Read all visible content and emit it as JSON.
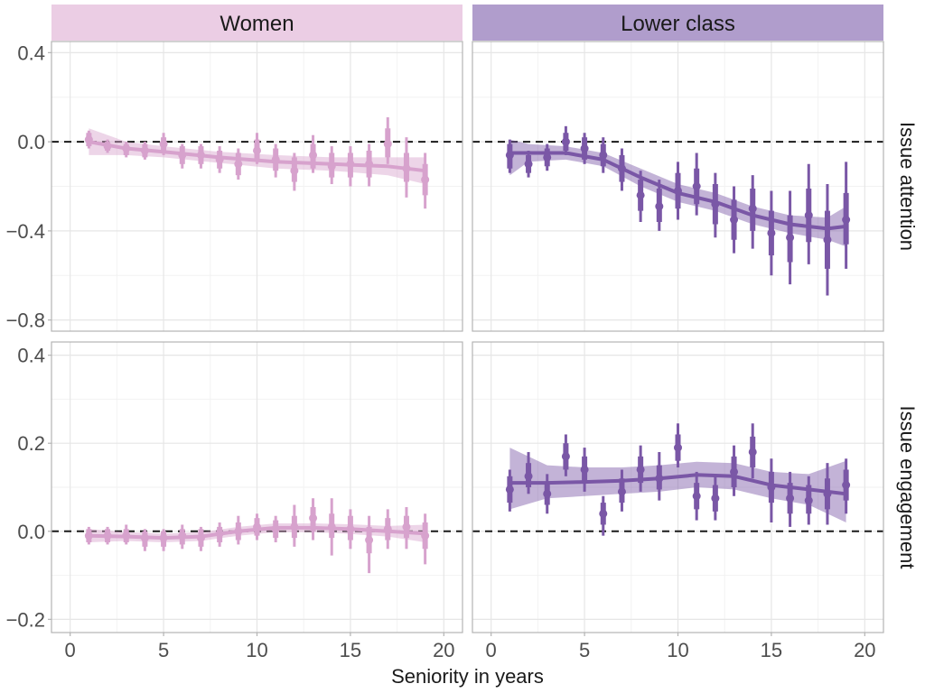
{
  "chart_data": {
    "type": "scatter",
    "xlabel": "Seniority in years",
    "xlim": [
      -1,
      21
    ],
    "x_ticks": [
      0,
      5,
      10,
      15,
      20
    ],
    "columns": [
      {
        "label": "Women",
        "color": "#d7a2cd",
        "strip_color": "#ebcde4"
      },
      {
        "label": "Lower class",
        "color": "#7a57a6",
        "strip_color": "#b09dcc"
      }
    ],
    "rows": [
      {
        "label": "Issue attention",
        "ylim": [
          -0.85,
          0.45
        ],
        "y_ticks": [
          0.4,
          0.0,
          -0.4,
          -0.8
        ],
        "y_tick_labels": [
          "0.4",
          "0.0",
          "−0.4",
          "−0.8"
        ]
      },
      {
        "label": "Issue engagement",
        "ylim": [
          -0.23,
          0.43
        ],
        "y_ticks": [
          0.4,
          0.2,
          0.0,
          -0.2
        ],
        "y_tick_labels": [
          "0.4",
          "0.2",
          "0.0",
          "−0.2"
        ]
      }
    ],
    "panels": [
      {
        "row": 0,
        "col": 0,
        "points": [
          {
            "x": 1,
            "y": 0.01,
            "lo": -0.02,
            "hi": 0.04,
            "lo2": -0.03,
            "hi2": 0.05
          },
          {
            "x": 2,
            "y": -0.02,
            "lo": -0.04,
            "hi": 0.0,
            "lo2": -0.05,
            "hi2": 0.01
          },
          {
            "x": 3,
            "y": -0.03,
            "lo": -0.06,
            "hi": -0.01,
            "lo2": -0.07,
            "hi2": 0.0
          },
          {
            "x": 4,
            "y": -0.04,
            "lo": -0.07,
            "hi": -0.01,
            "lo2": -0.08,
            "hi2": 0.0
          },
          {
            "x": 5,
            "y": -0.01,
            "lo": -0.05,
            "hi": 0.02,
            "lo2": -0.06,
            "hi2": 0.04
          },
          {
            "x": 6,
            "y": -0.06,
            "lo": -0.1,
            "hi": -0.02,
            "lo2": -0.12,
            "hi2": -0.01
          },
          {
            "x": 7,
            "y": -0.06,
            "lo": -0.1,
            "hi": -0.02,
            "lo2": -0.12,
            "hi2": -0.01
          },
          {
            "x": 8,
            "y": -0.08,
            "lo": -0.12,
            "hi": -0.04,
            "lo2": -0.14,
            "hi2": -0.02
          },
          {
            "x": 9,
            "y": -0.1,
            "lo": -0.15,
            "hi": -0.05,
            "lo2": -0.17,
            "hi2": -0.03
          },
          {
            "x": 10,
            "y": -0.04,
            "lo": -0.09,
            "hi": 0.01,
            "lo2": -0.1,
            "hi2": 0.04
          },
          {
            "x": 11,
            "y": -0.08,
            "lo": -0.13,
            "hi": -0.03,
            "lo2": -0.16,
            "hi2": -0.01
          },
          {
            "x": 12,
            "y": -0.13,
            "lo": -0.18,
            "hi": -0.07,
            "lo2": -0.22,
            "hi2": -0.05
          },
          {
            "x": 13,
            "y": -0.06,
            "lo": -0.12,
            "hi": -0.01,
            "lo2": -0.14,
            "hi2": 0.03
          },
          {
            "x": 14,
            "y": -0.11,
            "lo": -0.16,
            "hi": -0.05,
            "lo2": -0.19,
            "hi2": -0.02
          },
          {
            "x": 15,
            "y": -0.1,
            "lo": -0.16,
            "hi": -0.05,
            "lo2": -0.2,
            "hi2": -0.02
          },
          {
            "x": 16,
            "y": -0.1,
            "lo": -0.16,
            "hi": -0.04,
            "lo2": -0.2,
            "hi2": -0.01
          },
          {
            "x": 17,
            "y": -0.01,
            "lo": -0.07,
            "hi": 0.06,
            "lo2": -0.1,
            "hi2": 0.11
          },
          {
            "x": 18,
            "y": -0.12,
            "lo": -0.18,
            "hi": -0.05,
            "lo2": -0.25,
            "hi2": 0.02
          },
          {
            "x": 19,
            "y": -0.17,
            "lo": -0.24,
            "hi": -0.1,
            "lo2": -0.3,
            "hi2": -0.05
          }
        ],
        "smooth": [
          {
            "x": 1,
            "y": 0.0,
            "lo": -0.06,
            "hi": 0.06
          },
          {
            "x": 3,
            "y": -0.03,
            "lo": -0.06,
            "hi": 0.0
          },
          {
            "x": 5,
            "y": -0.045,
            "lo": -0.07,
            "hi": -0.02
          },
          {
            "x": 8,
            "y": -0.07,
            "lo": -0.095,
            "hi": -0.045
          },
          {
            "x": 11,
            "y": -0.09,
            "lo": -0.12,
            "hi": -0.06
          },
          {
            "x": 14,
            "y": -0.1,
            "lo": -0.13,
            "hi": -0.07
          },
          {
            "x": 17,
            "y": -0.11,
            "lo": -0.15,
            "hi": -0.07
          },
          {
            "x": 19,
            "y": -0.13,
            "lo": -0.19,
            "hi": -0.07
          }
        ]
      },
      {
        "row": 0,
        "col": 1,
        "points": [
          {
            "x": 1,
            "y": -0.06,
            "lo": -0.12,
            "hi": -0.01,
            "lo2": -0.14,
            "hi2": 0.01
          },
          {
            "x": 2,
            "y": -0.1,
            "lo": -0.14,
            "hi": -0.06,
            "lo2": -0.16,
            "hi2": -0.04
          },
          {
            "x": 3,
            "y": -0.07,
            "lo": -0.11,
            "hi": -0.03,
            "lo2": -0.13,
            "hi2": -0.01
          },
          {
            "x": 4,
            "y": 0.0,
            "lo": -0.04,
            "hi": 0.04,
            "lo2": -0.06,
            "hi2": 0.07
          },
          {
            "x": 5,
            "y": -0.03,
            "lo": -0.08,
            "hi": 0.02,
            "lo2": -0.1,
            "hi2": 0.04
          },
          {
            "x": 6,
            "y": -0.06,
            "lo": -0.11,
            "hi": -0.01,
            "lo2": -0.14,
            "hi2": 0.02
          },
          {
            "x": 7,
            "y": -0.12,
            "lo": -0.18,
            "hi": -0.06,
            "lo2": -0.22,
            "hi2": -0.03
          },
          {
            "x": 8,
            "y": -0.24,
            "lo": -0.31,
            "hi": -0.17,
            "lo2": -0.36,
            "hi2": -0.13
          },
          {
            "x": 9,
            "y": -0.29,
            "lo": -0.36,
            "hi": -0.21,
            "lo2": -0.4,
            "hi2": -0.17
          },
          {
            "x": 10,
            "y": -0.22,
            "lo": -0.3,
            "hi": -0.14,
            "lo2": -0.35,
            "hi2": -0.09
          },
          {
            "x": 11,
            "y": -0.2,
            "lo": -0.28,
            "hi": -0.12,
            "lo2": -0.33,
            "hi2": -0.05
          },
          {
            "x": 12,
            "y": -0.28,
            "lo": -0.37,
            "hi": -0.19,
            "lo2": -0.43,
            "hi2": -0.14
          },
          {
            "x": 13,
            "y": -0.35,
            "lo": -0.44,
            "hi": -0.26,
            "lo2": -0.5,
            "hi2": -0.2
          },
          {
            "x": 14,
            "y": -0.3,
            "lo": -0.4,
            "hi": -0.21,
            "lo2": -0.48,
            "hi2": -0.15
          },
          {
            "x": 15,
            "y": -0.41,
            "lo": -0.51,
            "hi": -0.31,
            "lo2": -0.6,
            "hi2": -0.22
          },
          {
            "x": 16,
            "y": -0.43,
            "lo": -0.54,
            "hi": -0.33,
            "lo2": -0.64,
            "hi2": -0.22
          },
          {
            "x": 17,
            "y": -0.33,
            "lo": -0.45,
            "hi": -0.21,
            "lo2": -0.55,
            "hi2": -0.1
          },
          {
            "x": 18,
            "y": -0.44,
            "lo": -0.57,
            "hi": -0.31,
            "lo2": -0.69,
            "hi2": -0.19
          },
          {
            "x": 19,
            "y": -0.35,
            "lo": -0.46,
            "hi": -0.23,
            "lo2": -0.57,
            "hi2": -0.09
          }
        ],
        "smooth": [
          {
            "x": 1,
            "y": -0.05,
            "lo": -0.15,
            "hi": 0.01
          },
          {
            "x": 2,
            "y": -0.05,
            "lo": -0.09,
            "hi": -0.01
          },
          {
            "x": 4,
            "y": -0.05,
            "lo": -0.08,
            "hi": -0.02
          },
          {
            "x": 6,
            "y": -0.08,
            "lo": -0.11,
            "hi": -0.05
          },
          {
            "x": 8,
            "y": -0.16,
            "lo": -0.2,
            "hi": -0.12
          },
          {
            "x": 10,
            "y": -0.23,
            "lo": -0.27,
            "hi": -0.19
          },
          {
            "x": 12,
            "y": -0.27,
            "lo": -0.31,
            "hi": -0.23
          },
          {
            "x": 14,
            "y": -0.33,
            "lo": -0.37,
            "hi": -0.29
          },
          {
            "x": 16,
            "y": -0.37,
            "lo": -0.41,
            "hi": -0.33
          },
          {
            "x": 18,
            "y": -0.39,
            "lo": -0.44,
            "hi": -0.34
          },
          {
            "x": 19,
            "y": -0.38,
            "lo": -0.47,
            "hi": -0.29
          }
        ]
      },
      {
        "row": 1,
        "col": 0,
        "points": [
          {
            "x": 1,
            "y": -0.01,
            "lo": -0.025,
            "hi": 0.005,
            "lo2": -0.03,
            "hi2": 0.01
          },
          {
            "x": 2,
            "y": -0.01,
            "lo": -0.025,
            "hi": 0.005,
            "lo2": -0.03,
            "hi2": 0.01
          },
          {
            "x": 3,
            "y": -0.01,
            "lo": -0.025,
            "hi": 0.005,
            "lo2": -0.03,
            "hi2": 0.015
          },
          {
            "x": 4,
            "y": -0.015,
            "lo": -0.035,
            "hi": 0.0,
            "lo2": -0.045,
            "hi2": 0.005
          },
          {
            "x": 5,
            "y": -0.015,
            "lo": -0.035,
            "hi": 0.0,
            "lo2": -0.045,
            "hi2": 0.005
          },
          {
            "x": 6,
            "y": -0.01,
            "lo": -0.03,
            "hi": 0.005,
            "lo2": -0.04,
            "hi2": 0.015
          },
          {
            "x": 7,
            "y": -0.015,
            "lo": -0.035,
            "hi": 0.005,
            "lo2": -0.045,
            "hi2": 0.01
          },
          {
            "x": 8,
            "y": -0.005,
            "lo": -0.025,
            "hi": 0.01,
            "lo2": -0.035,
            "hi2": 0.02
          },
          {
            "x": 9,
            "y": 0.0,
            "lo": -0.02,
            "hi": 0.02,
            "lo2": -0.03,
            "hi2": 0.035
          },
          {
            "x": 10,
            "y": 0.01,
            "lo": -0.01,
            "hi": 0.03,
            "lo2": -0.02,
            "hi2": 0.04
          },
          {
            "x": 11,
            "y": 0.005,
            "lo": -0.015,
            "hi": 0.025,
            "lo2": -0.025,
            "hi2": 0.035
          },
          {
            "x": 12,
            "y": 0.01,
            "lo": -0.015,
            "hi": 0.035,
            "lo2": -0.035,
            "hi2": 0.06
          },
          {
            "x": 13,
            "y": 0.03,
            "lo": 0.0,
            "hi": 0.055,
            "lo2": -0.02,
            "hi2": 0.075
          },
          {
            "x": 14,
            "y": 0.01,
            "lo": -0.015,
            "hi": 0.04,
            "lo2": -0.055,
            "hi2": 0.075
          },
          {
            "x": 15,
            "y": 0.005,
            "lo": -0.02,
            "hi": 0.035,
            "lo2": -0.04,
            "hi2": 0.05
          },
          {
            "x": 16,
            "y": -0.02,
            "lo": -0.05,
            "hi": 0.01,
            "lo2": -0.095,
            "hi2": 0.035
          },
          {
            "x": 17,
            "y": 0.005,
            "lo": -0.02,
            "hi": 0.03,
            "lo2": -0.04,
            "hi2": 0.05
          },
          {
            "x": 18,
            "y": 0.01,
            "lo": -0.015,
            "hi": 0.035,
            "lo2": -0.04,
            "hi2": 0.055
          },
          {
            "x": 19,
            "y": -0.01,
            "lo": -0.04,
            "hi": 0.02,
            "lo2": -0.075,
            "hi2": 0.04
          }
        ],
        "smooth": [
          {
            "x": 1,
            "y": -0.01,
            "lo": -0.025,
            "hi": 0.005
          },
          {
            "x": 3,
            "y": -0.012,
            "lo": -0.022,
            "hi": -0.002
          },
          {
            "x": 5,
            "y": -0.015,
            "lo": -0.025,
            "hi": -0.005
          },
          {
            "x": 7,
            "y": -0.012,
            "lo": -0.022,
            "hi": -0.002
          },
          {
            "x": 9,
            "y": 0.0,
            "lo": -0.01,
            "hi": 0.01
          },
          {
            "x": 11,
            "y": 0.008,
            "lo": -0.002,
            "hi": 0.018
          },
          {
            "x": 13,
            "y": 0.008,
            "lo": -0.002,
            "hi": 0.018
          },
          {
            "x": 15,
            "y": 0.005,
            "lo": -0.006,
            "hi": 0.016
          },
          {
            "x": 17,
            "y": 0.0,
            "lo": -0.012,
            "hi": 0.012
          },
          {
            "x": 19,
            "y": -0.005,
            "lo": -0.025,
            "hi": 0.015
          }
        ]
      },
      {
        "row": 1,
        "col": 1,
        "points": [
          {
            "x": 1,
            "y": 0.095,
            "lo": 0.065,
            "hi": 0.125,
            "lo2": 0.045,
            "hi2": 0.14
          },
          {
            "x": 2,
            "y": 0.125,
            "lo": 0.1,
            "hi": 0.155,
            "lo2": 0.085,
            "hi2": 0.18
          },
          {
            "x": 3,
            "y": 0.085,
            "lo": 0.06,
            "hi": 0.11,
            "lo2": 0.04,
            "hi2": 0.13
          },
          {
            "x": 4,
            "y": 0.17,
            "lo": 0.14,
            "hi": 0.2,
            "lo2": 0.125,
            "hi2": 0.22
          },
          {
            "x": 5,
            "y": 0.14,
            "lo": 0.11,
            "hi": 0.17,
            "lo2": 0.09,
            "hi2": 0.19
          },
          {
            "x": 6,
            "y": 0.04,
            "lo": 0.015,
            "hi": 0.065,
            "lo2": -0.01,
            "hi2": 0.08
          },
          {
            "x": 7,
            "y": 0.09,
            "lo": 0.065,
            "hi": 0.12,
            "lo2": 0.045,
            "hi2": 0.14
          },
          {
            "x": 8,
            "y": 0.14,
            "lo": 0.11,
            "hi": 0.17,
            "lo2": 0.09,
            "hi2": 0.195
          },
          {
            "x": 9,
            "y": 0.12,
            "lo": 0.095,
            "hi": 0.15,
            "lo2": 0.07,
            "hi2": 0.18
          },
          {
            "x": 10,
            "y": 0.19,
            "lo": 0.16,
            "hi": 0.22,
            "lo2": 0.145,
            "hi2": 0.245
          },
          {
            "x": 11,
            "y": 0.08,
            "lo": 0.05,
            "hi": 0.11,
            "lo2": 0.025,
            "hi2": 0.135
          },
          {
            "x": 12,
            "y": 0.075,
            "lo": 0.045,
            "hi": 0.105,
            "lo2": 0.025,
            "hi2": 0.125
          },
          {
            "x": 13,
            "y": 0.135,
            "lo": 0.1,
            "hi": 0.17,
            "lo2": 0.08,
            "hi2": 0.195
          },
          {
            "x": 14,
            "y": 0.18,
            "lo": 0.145,
            "hi": 0.215,
            "lo2": 0.12,
            "hi2": 0.245
          },
          {
            "x": 15,
            "y": 0.1,
            "lo": 0.065,
            "hi": 0.135,
            "lo2": 0.02,
            "hi2": 0.165
          },
          {
            "x": 16,
            "y": 0.075,
            "lo": 0.04,
            "hi": 0.11,
            "lo2": 0.01,
            "hi2": 0.135
          },
          {
            "x": 17,
            "y": 0.07,
            "lo": 0.04,
            "hi": 0.105,
            "lo2": 0.015,
            "hi2": 0.125
          },
          {
            "x": 18,
            "y": 0.085,
            "lo": 0.05,
            "hi": 0.12,
            "lo2": 0.015,
            "hi2": 0.155
          },
          {
            "x": 19,
            "y": 0.105,
            "lo": 0.07,
            "hi": 0.14,
            "lo2": 0.04,
            "hi2": 0.165
          }
        ],
        "smooth": [
          {
            "x": 1,
            "y": 0.11,
            "lo": 0.05,
            "hi": 0.19
          },
          {
            "x": 3,
            "y": 0.11,
            "lo": 0.075,
            "hi": 0.15
          },
          {
            "x": 5,
            "y": 0.112,
            "lo": 0.08,
            "hi": 0.145
          },
          {
            "x": 7,
            "y": 0.115,
            "lo": 0.085,
            "hi": 0.145
          },
          {
            "x": 9,
            "y": 0.12,
            "lo": 0.09,
            "hi": 0.15
          },
          {
            "x": 11,
            "y": 0.128,
            "lo": 0.1,
            "hi": 0.158
          },
          {
            "x": 13,
            "y": 0.125,
            "lo": 0.095,
            "hi": 0.155
          },
          {
            "x": 15,
            "y": 0.105,
            "lo": 0.075,
            "hi": 0.135
          },
          {
            "x": 17,
            "y": 0.095,
            "lo": 0.06,
            "hi": 0.13
          },
          {
            "x": 19,
            "y": 0.085,
            "lo": 0.02,
            "hi": 0.16
          }
        ]
      }
    ]
  }
}
